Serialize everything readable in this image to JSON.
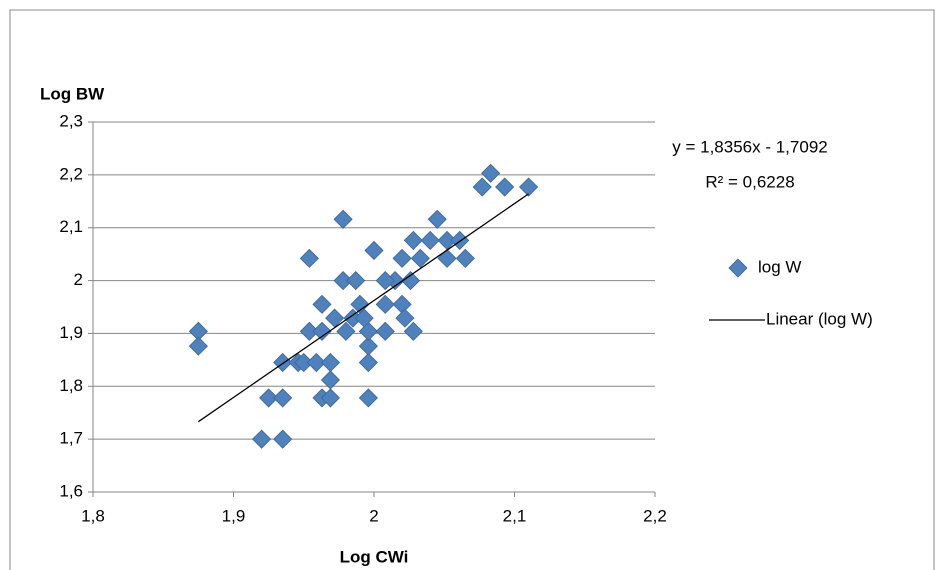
{
  "chart_data": {
    "type": "scatter",
    "x_label": "Log CWi",
    "y_label": "Log  BW",
    "xlim": [
      1.8,
      2.2
    ],
    "xticks": [
      {
        "value": 1.8,
        "label": "1,8"
      },
      {
        "value": 1.9,
        "label": "1,9"
      },
      2,
      {
        "value": 2.1,
        "label": "2,1"
      },
      {
        "value": 2.2,
        "label": "2,2"
      }
    ],
    "ylim": [
      1.6,
      2.3
    ],
    "yticks": [
      {
        "value": 1.6,
        "label": "1,6"
      },
      {
        "value": 1.7,
        "label": "1,7"
      },
      {
        "value": 1.8,
        "label": "1,8"
      },
      {
        "value": 1.9,
        "label": "1,9"
      },
      2,
      {
        "value": 2.1,
        "label": "2,1"
      },
      {
        "value": 2.2,
        "label": "2,2"
      },
      {
        "value": 2.3,
        "label": "2,3"
      }
    ],
    "grid": true,
    "series": [
      {
        "name": "log W",
        "color": "#4f81bd",
        "x": [
          1.875,
          1.875,
          1.92,
          1.935,
          1.925,
          1.935,
          1.935,
          1.946,
          1.95,
          1.959,
          1.969,
          1.969,
          1.963,
          1.969,
          1.996,
          1.954,
          1.963,
          1.972,
          1.963,
          1.954,
          1.978,
          1.978,
          1.987,
          1.996,
          1.996,
          1.996,
          1.99,
          1.98,
          1.985,
          1.993,
          2.0,
          2.028,
          2.02,
          2.028,
          2.04,
          2.045,
          2.052,
          2.061,
          2.065,
          2.052,
          2.033,
          2.026,
          2.015,
          2.008,
          2.02,
          2.022,
          2.008,
          2.008,
          2.077,
          2.083,
          2.093,
          2.11
        ],
        "values": [
          1.904,
          1.876,
          1.7,
          1.7,
          1.778,
          1.778,
          1.845,
          1.845,
          1.845,
          1.845,
          1.845,
          1.812,
          1.778,
          1.778,
          1.778,
          1.904,
          1.904,
          1.929,
          1.955,
          2.042,
          2.116,
          2.0,
          2.0,
          1.845,
          1.876,
          1.904,
          1.955,
          1.904,
          1.929,
          1.929,
          2.057,
          1.904,
          2.042,
          2.076,
          2.076,
          2.116,
          2.076,
          2.076,
          2.042,
          2.042,
          2.042,
          2.0,
          2.0,
          2.0,
          1.955,
          1.929,
          1.955,
          1.904,
          2.177,
          2.203,
          2.177,
          2.177
        ]
      },
      {
        "name": "Linear (log W)",
        "color": "#000000",
        "x": [
          1.875,
          2.11
        ],
        "values": [
          1.733,
          2.164
        ]
      }
    ],
    "annotations": [
      "y = 1,8356x - 1,7092",
      "R² = 0,6228"
    ]
  }
}
